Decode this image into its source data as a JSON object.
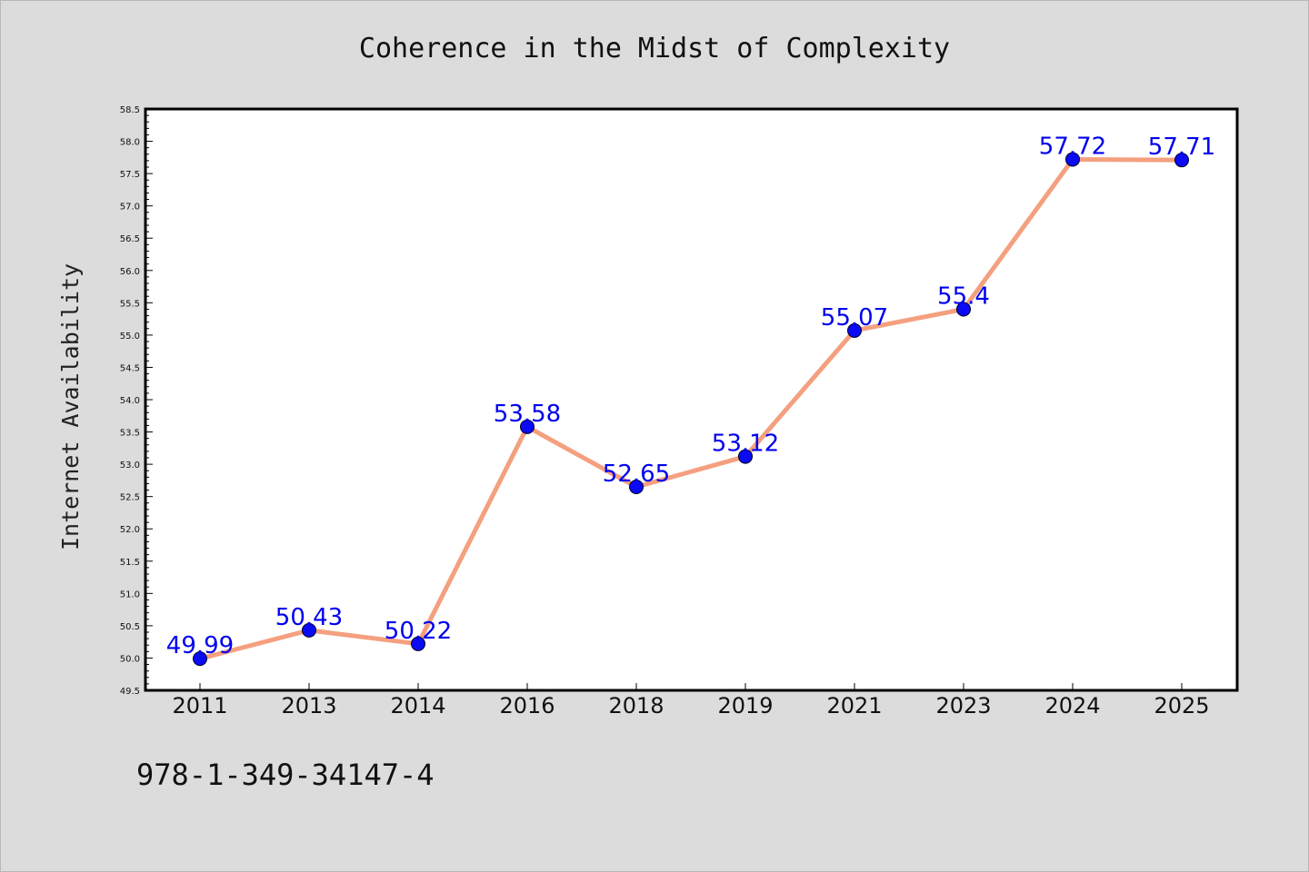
{
  "chart_data": {
    "type": "line",
    "title": "Coherence in the Midst of Complexity",
    "xlabel": "",
    "ylabel": "Internet Availability",
    "categories": [
      "2011",
      "2013",
      "2014",
      "2016",
      "2018",
      "2019",
      "2021",
      "2023",
      "2024",
      "2025"
    ],
    "series": [
      {
        "values": [
          49.99,
          50.43,
          50.22,
          53.58,
          52.65,
          53.12,
          55.07,
          55.4,
          57.72,
          57.71
        ],
        "data_labels": [
          "49.99",
          "50.43",
          "50.22",
          "53.58",
          "52.65",
          "53.12",
          "55.07",
          "55.4",
          "57.72",
          "57.71"
        ]
      }
    ],
    "ylim": [
      49.5,
      58.5
    ],
    "yticks": [
      "49.5",
      "50.0",
      "50.5",
      "51.0",
      "51.5",
      "52.0",
      "52.5",
      "53.0",
      "53.5",
      "54.0",
      "54.5",
      "55.0",
      "55.5",
      "56.0",
      "56.5",
      "57.0",
      "57.5",
      "58.0",
      "58.5"
    ],
    "grid": false,
    "legend": "none",
    "colors": {
      "line": "#f4a07f",
      "marker": "#0a0af5",
      "data_label": "#0000ee",
      "background": "#dcdcdc",
      "plot_area": "#ffffff"
    }
  },
  "footer": {
    "isbn": "978-1-349-34147-4"
  }
}
